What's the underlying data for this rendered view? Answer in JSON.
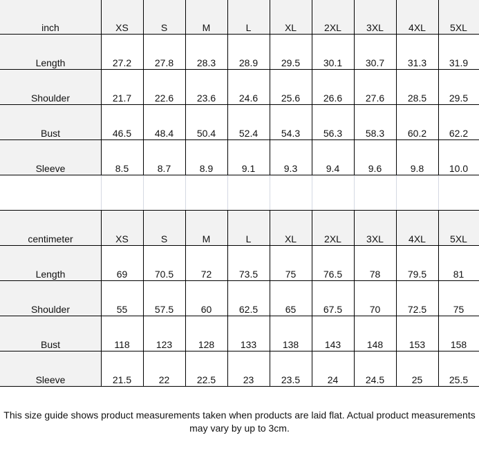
{
  "sizes": [
    "XS",
    "S",
    "M",
    "L",
    "XL",
    "2XL",
    "3XL",
    "4XL",
    "5XL"
  ],
  "inch": {
    "unit_label": "inch",
    "rows": [
      {
        "label": "Length",
        "values": [
          "27.2",
          "27.8",
          "28.3",
          "28.9",
          "29.5",
          "30.1",
          "30.7",
          "31.3",
          "31.9"
        ]
      },
      {
        "label": "Shoulder",
        "values": [
          "21.7",
          "22.6",
          "23.6",
          "24.6",
          "25.6",
          "26.6",
          "27.6",
          "28.5",
          "29.5"
        ]
      },
      {
        "label": "Bust",
        "values": [
          "46.5",
          "48.4",
          "50.4",
          "52.4",
          "54.3",
          "56.3",
          "58.3",
          "60.2",
          "62.2"
        ]
      },
      {
        "label": "Sleeve",
        "values": [
          "8.5",
          "8.7",
          "8.9",
          "9.1",
          "9.3",
          "9.4",
          "9.6",
          "9.8",
          "10.0"
        ]
      }
    ]
  },
  "centimeter": {
    "unit_label": "centimeter",
    "rows": [
      {
        "label": "Length",
        "values": [
          "69",
          "70.5",
          "72",
          "73.5",
          "75",
          "76.5",
          "78",
          "79.5",
          "81"
        ]
      },
      {
        "label": "Shoulder",
        "values": [
          "55",
          "57.5",
          "60",
          "62.5",
          "65",
          "67.5",
          "70",
          "72.5",
          "75"
        ]
      },
      {
        "label": "Bust",
        "values": [
          "118",
          "123",
          "128",
          "133",
          "138",
          "143",
          "148",
          "153",
          "158"
        ]
      },
      {
        "label": "Sleeve",
        "values": [
          "21.5",
          "22",
          "22.5",
          "23",
          "23.5",
          "24",
          "24.5",
          "25",
          "25.5"
        ]
      }
    ]
  },
  "footer": {
    "note": "This size guide shows product measurements taken when products are laid flat. Actual product measurements may vary by up to 3cm."
  },
  "colors": {
    "header_bg": "#f2f2f2",
    "grid": "#000000",
    "empty_grid": "#d4d8e2"
  }
}
